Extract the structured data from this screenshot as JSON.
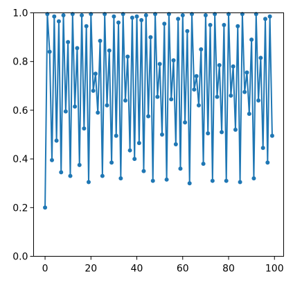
{
  "chart_data": {
    "type": "line",
    "title": "",
    "xlabel": "",
    "ylabel": "",
    "xlim": [
      -5,
      104
    ],
    "ylim": [
      0.0,
      1.0
    ],
    "xticks": [
      0,
      20,
      40,
      60,
      80,
      100
    ],
    "xtick_labels": [
      "0",
      "20",
      "40",
      "60",
      "80",
      "100"
    ],
    "yticks": [
      0.0,
      0.2,
      0.4,
      0.6,
      0.8,
      1.0
    ],
    "ytick_labels": [
      "0.0",
      "0.2",
      "0.4",
      "0.6",
      "0.8",
      "1.0"
    ],
    "grid": false,
    "legend": "none",
    "series": [
      {
        "color": "#1f77b4",
        "marker": "circle",
        "x": [
          0,
          1,
          2,
          3,
          4,
          5,
          6,
          7,
          8,
          9,
          10,
          11,
          12,
          13,
          14,
          15,
          16,
          17,
          18,
          19,
          20,
          21,
          22,
          23,
          24,
          25,
          26,
          27,
          28,
          29,
          30,
          31,
          32,
          33,
          34,
          35,
          36,
          37,
          38,
          39,
          40,
          41,
          42,
          43,
          44,
          45,
          46,
          47,
          48,
          49,
          50,
          51,
          52,
          53,
          54,
          55,
          56,
          57,
          58,
          59,
          60,
          61,
          62,
          63,
          64,
          65,
          66,
          67,
          68,
          69,
          70,
          71,
          72,
          73,
          74,
          75,
          76,
          77,
          78,
          79,
          80,
          81,
          82,
          83,
          84,
          85,
          86,
          87,
          88,
          89,
          90,
          91,
          92,
          93,
          94,
          95,
          96,
          97,
          98,
          99
        ],
        "y": [
          0.2,
          0.995,
          0.84,
          0.395,
          0.985,
          0.475,
          0.965,
          0.345,
          0.99,
          0.595,
          0.88,
          0.33,
          0.995,
          0.615,
          0.855,
          0.375,
          0.99,
          0.525,
          0.945,
          0.305,
          0.995,
          0.68,
          0.75,
          0.59,
          0.885,
          0.33,
          0.995,
          0.62,
          0.845,
          0.385,
          0.985,
          0.495,
          0.96,
          0.32,
          0.995,
          0.64,
          0.82,
          0.435,
          0.98,
          0.4,
          0.985,
          0.465,
          0.97,
          0.35,
          0.99,
          0.575,
          0.9,
          0.31,
          0.995,
          0.655,
          0.79,
          0.5,
          0.955,
          0.315,
          0.995,
          0.645,
          0.805,
          0.46,
          0.975,
          0.36,
          0.99,
          0.55,
          0.925,
          0.3,
          0.995,
          0.685,
          0.74,
          0.62,
          0.85,
          0.38,
          0.99,
          0.505,
          0.95,
          0.31,
          0.995,
          0.655,
          0.785,
          0.51,
          0.95,
          0.31,
          0.995,
          0.66,
          0.78,
          0.52,
          0.945,
          0.305,
          0.995,
          0.675,
          0.755,
          0.585,
          0.89,
          0.32,
          0.995,
          0.64,
          0.815,
          0.445,
          0.975,
          0.385,
          0.985,
          0.495
        ]
      }
    ]
  }
}
